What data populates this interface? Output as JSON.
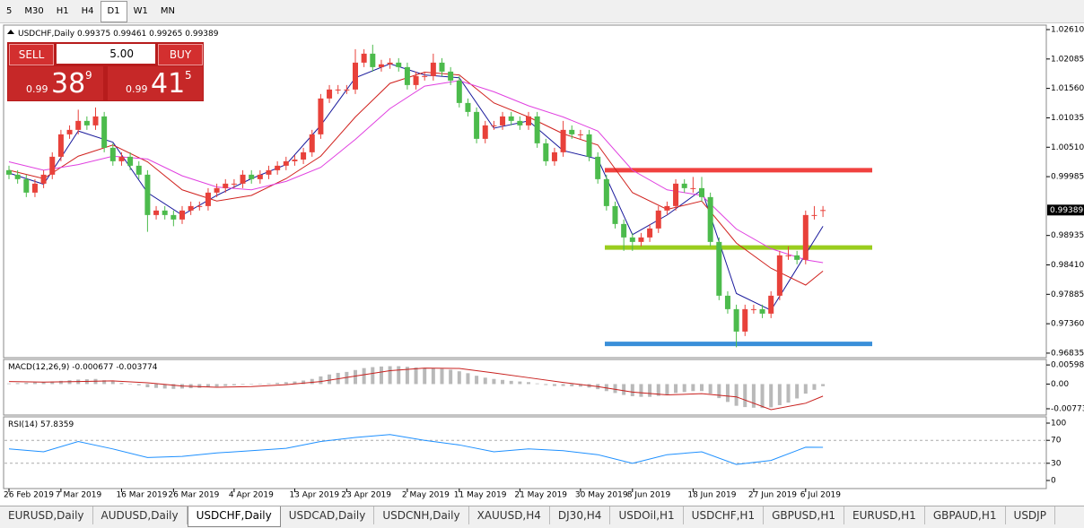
{
  "toolbar": {
    "buttons": [
      "5",
      "M30",
      "H1",
      "H4",
      "D1",
      "W1",
      "MN"
    ],
    "active": 4
  },
  "trade_panel": {
    "sell": "SELL",
    "buy": "BUY",
    "volume": "5.00",
    "bid": {
      "big": "0.99",
      "main": "38",
      "pip": "9"
    },
    "ask": {
      "big": "0.99",
      "main": "41",
      "pip": "5"
    }
  },
  "tabs": {
    "items": [
      "EURUSD,Daily",
      "AUDUSD,Daily",
      "USDCHF,Daily",
      "USDCAD,Daily",
      "USDCNH,Daily",
      "XAUUSD,H4",
      "DJ30,H4",
      "USDOil,H1",
      "USDCHF,H1",
      "GBPUSD,H1",
      "EURUSD,H1",
      "GBPAUD,H1",
      "USDJP"
    ],
    "active": 2
  },
  "chart_data": [
    {
      "type": "candlestick",
      "title": "USDCHF,Daily",
      "categories": [
        "26 Feb 2019",
        null,
        null,
        null,
        null,
        null,
        "7 Mar 2019",
        null,
        null,
        null,
        null,
        null,
        null,
        "16 Mar 2019",
        null,
        null,
        null,
        null,
        null,
        "26 Mar 2019",
        null,
        null,
        null,
        null,
        null,
        null,
        "4 Apr 2019",
        null,
        null,
        null,
        null,
        null,
        null,
        "13 Apr 2019",
        null,
        null,
        null,
        null,
        null,
        "23 Apr 2019",
        null,
        null,
        null,
        null,
        null,
        null,
        "2 May 2019",
        null,
        null,
        null,
        null,
        null,
        "11 May 2019",
        null,
        null,
        null,
        null,
        null,
        null,
        "21 May 2019",
        null,
        null,
        null,
        null,
        null,
        null,
        "30 May 2019",
        null,
        null,
        null,
        null,
        null,
        "8 Jun 2019",
        null,
        null,
        null,
        null,
        null,
        null,
        "18 Jun 2019",
        null,
        null,
        null,
        null,
        null,
        null,
        "27 Jun 2019",
        null,
        null,
        null,
        null,
        null,
        "6 Jul 2019",
        null,
        null
      ],
      "open": [
        1.001,
        1.0002,
        0.9994,
        0.997,
        0.9986,
        1.0002,
        1.0034,
        1.0074,
        1.0082,
        1.0098,
        1.009,
        1.0106,
        1.005,
        1.0026,
        1.0034,
        1.0018,
        1.0002,
        0.993,
        0.9938,
        0.993,
        0.9922,
        0.9938,
        0.9946,
        0.9946,
        0.997,
        0.9978,
        0.9986,
        0.9986,
        1.0002,
        0.9994,
        1.0002,
        1.001,
        1.0018,
        1.0026,
        1.0029,
        1.0042,
        1.0074,
        1.0138,
        1.0154,
        1.0154,
        1.0154,
        1.0202,
        1.0218,
        1.0194,
        1.0199,
        1.0202,
        1.0194,
        1.0162,
        1.0178,
        1.0178,
        1.0202,
        1.0186,
        1.017,
        1.013,
        1.0114,
        1.0066,
        1.009,
        1.009,
        1.0106,
        1.0098,
        1.009,
        1.0106,
        1.0058,
        1.0026,
        1.0042,
        1.0082,
        1.0074,
        1.0074,
        1.0034,
        0.9994,
        0.9946,
        0.9914,
        0.989,
        0.9882,
        0.989,
        0.9906,
        0.9938,
        0.9946,
        0.9986,
        0.9978,
        0.9978,
        0.9962,
        0.9882,
        0.9786,
        0.9762,
        0.9722,
        0.9762,
        0.9762,
        0.9754,
        0.9786,
        0.9858,
        0.9858,
        0.985,
        0.993,
        0.99375
      ],
      "high": [
        1.0018,
        1.001,
        1.0002,
        0.9994,
        1.001,
        1.0042,
        1.0082,
        1.009,
        1.0118,
        1.0106,
        1.0122,
        1.0114,
        1.0058,
        1.0042,
        1.0042,
        1.0026,
        1.001,
        0.9946,
        0.9946,
        0.9938,
        0.9946,
        0.9954,
        0.9954,
        0.9978,
        0.9986,
        0.9994,
        0.9994,
        1.001,
        1.001,
        1.001,
        1.0018,
        1.0026,
        1.0034,
        1.0037,
        1.005,
        1.0082,
        1.0146,
        1.0162,
        1.0162,
        1.0162,
        1.0226,
        1.0226,
        1.0234,
        1.0207,
        1.021,
        1.021,
        1.0202,
        1.0186,
        1.0186,
        1.0218,
        1.021,
        1.0194,
        1.0178,
        1.0138,
        1.0122,
        1.0098,
        1.0098,
        1.0114,
        1.0114,
        1.0106,
        1.0114,
        1.0114,
        1.0066,
        1.005,
        1.0098,
        1.009,
        1.0082,
        1.0082,
        1.0042,
        1.0002,
        0.9954,
        0.9922,
        0.9898,
        0.9898,
        0.9914,
        0.9946,
        0.9954,
        0.9994,
        0.9994,
        0.9998,
        0.9998,
        0.997,
        0.989,
        0.9794,
        0.977,
        0.977,
        0.977,
        0.977,
        0.9794,
        0.9866,
        0.9874,
        0.9866,
        0.9938,
        0.9946,
        0.99461
      ],
      "low": [
        0.9994,
        0.9986,
        0.9962,
        0.9962,
        0.9978,
        0.9994,
        1.0026,
        1.0066,
        1.0074,
        1.0082,
        1.0082,
        1.0042,
        1.0018,
        1.0018,
        1.001,
        0.9994,
        0.99,
        0.9922,
        0.9922,
        0.991,
        0.9914,
        0.993,
        0.9938,
        0.9938,
        0.9962,
        0.997,
        0.9978,
        0.9978,
        0.9986,
        0.9986,
        0.9994,
        1.0002,
        1.001,
        1.0018,
        1.0021,
        1.0034,
        1.0066,
        1.013,
        1.0146,
        1.0146,
        1.0146,
        1.0194,
        1.0186,
        1.0186,
        1.0191,
        1.0186,
        1.0154,
        1.0154,
        1.017,
        1.017,
        1.0178,
        1.0162,
        1.0122,
        1.0106,
        1.0058,
        1.0058,
        1.0082,
        1.0082,
        1.009,
        1.0082,
        1.0082,
        1.005,
        1.0018,
        1.0018,
        1.0034,
        1.0066,
        1.0066,
        1.0026,
        0.9986,
        0.9938,
        0.9906,
        0.9866,
        0.9866,
        0.9874,
        0.9882,
        0.9898,
        0.993,
        0.9938,
        0.997,
        0.997,
        0.9954,
        0.9874,
        0.9778,
        0.9754,
        0.9694,
        0.9714,
        0.9754,
        0.9746,
        0.9746,
        0.9778,
        0.985,
        0.9842,
        0.9842,
        0.9922,
        0.99265
      ],
      "close": [
        1.0002,
        0.9994,
        0.997,
        0.9986,
        1.0002,
        1.0034,
        1.0074,
        1.0082,
        1.0098,
        1.009,
        1.0106,
        1.005,
        1.0026,
        1.0034,
        1.0018,
        1.0002,
        0.993,
        0.9938,
        0.993,
        0.9922,
        0.9938,
        0.9946,
        0.9946,
        0.997,
        0.9978,
        0.9986,
        0.9986,
        1.0002,
        0.9994,
        1.0002,
        1.001,
        1.0018,
        1.0026,
        1.0029,
        1.0042,
        1.0074,
        1.0138,
        1.0154,
        1.0154,
        1.0154,
        1.0202,
        1.0218,
        1.0194,
        1.0199,
        1.0202,
        1.0194,
        1.0162,
        1.0178,
        1.0178,
        1.0202,
        1.0186,
        1.017,
        1.013,
        1.0114,
        1.0066,
        1.009,
        1.009,
        1.0106,
        1.0098,
        1.009,
        1.0106,
        1.0058,
        1.0026,
        1.0042,
        1.0082,
        1.0074,
        1.0074,
        1.0034,
        0.9994,
        0.9946,
        0.9914,
        0.989,
        0.9882,
        0.989,
        0.9906,
        0.9938,
        0.9946,
        0.9986,
        0.9978,
        0.9978,
        0.9962,
        0.9882,
        0.9786,
        0.9762,
        0.9722,
        0.9762,
        0.9762,
        0.9754,
        0.9786,
        0.9858,
        0.9858,
        0.985,
        0.993,
        0.993,
        0.99389
      ],
      "up_color": "#e8413a",
      "down_color": "#4cbb4c",
      "ylim": [
        0.9677,
        1.0269
      ],
      "yticks": [
        {
          "value": 1.0261,
          "label": "1.02610"
        },
        1.02085,
        {
          "value": 1.0156,
          "label": "1.01560"
        },
        1.01035,
        {
          "value": 1.0051,
          "label": "1.00510"
        },
        0.99985,
        0.98935,
        {
          "value": 0.9841,
          "label": "0.98410"
        },
        0.97885,
        {
          "value": 0.9736,
          "label": "0.97360"
        },
        0.96835
      ],
      "series": [
        {
          "color": "#1a1a9c",
          "x": [
            0,
            4,
            8,
            12,
            16,
            20,
            24,
            28,
            32,
            36,
            40,
            44,
            48,
            52,
            56,
            60,
            64,
            68,
            72,
            76,
            80,
            84,
            88,
            92,
            94
          ],
          "values": [
            1.0005,
            0.9985,
            1.008,
            1.006,
            0.997,
            0.993,
            0.9965,
            0.9995,
            1.002,
            1.009,
            1.0175,
            1.02,
            1.018,
            1.0175,
            1.0085,
            1.0098,
            1.0045,
            1.003,
            0.9895,
            0.993,
            0.9975,
            0.979,
            0.976,
            0.986,
            0.991
          ]
        },
        {
          "color": "#d0201c",
          "x": [
            0,
            4,
            8,
            12,
            16,
            20,
            24,
            28,
            32,
            36,
            40,
            44,
            48,
            52,
            56,
            60,
            64,
            68,
            72,
            76,
            80,
            84,
            88,
            92,
            94
          ],
          "values": [
            1.001,
            0.9995,
            1.0035,
            1.0055,
            1.0025,
            0.9975,
            0.9955,
            0.9965,
            0.9995,
            1.0035,
            1.0105,
            1.0165,
            1.0185,
            1.018,
            1.013,
            1.0105,
            1.0075,
            1.0055,
            0.997,
            0.994,
            0.9955,
            0.988,
            0.9835,
            0.9805,
            0.983
          ]
        },
        {
          "color": "#e040e0",
          "x": [
            0,
            4,
            8,
            12,
            16,
            20,
            24,
            28,
            32,
            36,
            40,
            44,
            48,
            52,
            56,
            60,
            64,
            68,
            72,
            76,
            80,
            84,
            88,
            92,
            94
          ],
          "values": [
            1.0025,
            1.001,
            1.002,
            1.0035,
            1.003,
            1.0,
            0.998,
            0.9975,
            0.999,
            1.0015,
            1.0065,
            1.012,
            1.016,
            1.017,
            1.015,
            1.0125,
            1.0105,
            1.008,
            1.001,
            0.9975,
            0.9965,
            0.9905,
            0.987,
            0.985,
            0.9845
          ]
        }
      ],
      "hlines": [
        {
          "value": 1.001,
          "color": "#f0413f"
        },
        {
          "value": 0.9872,
          "color": "#9acd1e"
        },
        {
          "value": 0.97,
          "color": "#3a8fd9"
        }
      ]
    },
    {
      "type": "bar",
      "title": "MACD(12,26,9)",
      "color": "#b9b9b9",
      "values": [
        0.0002,
        0.0003,
        0.0004,
        0.0005,
        0.0006,
        0.0008,
        0.001,
        0.0012,
        0.0014,
        0.0015,
        0.0016,
        0.0012,
        0.0008,
        0.0004,
        0.0,
        -0.0004,
        -0.001,
        -0.0012,
        -0.0014,
        -0.0015,
        -0.0014,
        -0.0013,
        -0.0012,
        -0.001,
        -0.0008,
        -0.0006,
        -0.0004,
        -0.0002,
        -0.0001,
        0.0,
        0.0002,
        0.0004,
        0.0006,
        0.0008,
        0.0011,
        0.0016,
        0.0024,
        0.003,
        0.0035,
        0.0038,
        0.0044,
        0.005,
        0.0053,
        0.0055,
        0.0056,
        0.0056,
        0.0054,
        0.0052,
        0.005,
        0.005,
        0.0048,
        0.0045,
        0.004,
        0.0034,
        0.0026,
        0.002,
        0.0016,
        0.0013,
        0.001,
        0.0008,
        0.0006,
        0.0002,
        -0.0003,
        -0.0006,
        -0.0006,
        -0.0007,
        -0.0008,
        -0.0011,
        -0.0016,
        -0.0022,
        -0.0028,
        -0.0034,
        -0.0038,
        -0.004,
        -0.004,
        -0.0037,
        -0.0034,
        -0.0028,
        -0.0025,
        -0.0022,
        -0.0022,
        -0.003,
        -0.0044,
        -0.0056,
        -0.0068,
        -0.0072,
        -0.0074,
        -0.0075,
        -0.0073,
        -0.0066,
        -0.0058,
        -0.0045,
        -0.003,
        -0.0018,
        -0.000677
      ],
      "series": [
        {
          "color": "#c8201e",
          "x": [
            0,
            4,
            8,
            12,
            16,
            20,
            24,
            28,
            32,
            36,
            40,
            44,
            48,
            52,
            56,
            60,
            64,
            68,
            72,
            76,
            80,
            84,
            88,
            92,
            94
          ],
          "values": [
            0.0008,
            0.0006,
            0.0008,
            0.001,
            0.0004,
            -0.0006,
            -0.001,
            -0.0008,
            -0.0002,
            0.0008,
            0.0025,
            0.0042,
            0.005,
            0.0049,
            0.0035,
            0.002,
            0.0005,
            -0.0008,
            -0.0025,
            -0.0034,
            -0.003,
            -0.004,
            -0.008,
            -0.006,
            -0.003774
          ]
        }
      ],
      "ylim": [
        -0.0097,
        0.0077
      ],
      "yticks": [
        0.005986,
        {
          "value": 0,
          "label": "0.00"
        },
        -0.00773
      ]
    },
    {
      "type": "line",
      "title": "RSI(14)",
      "series": [
        {
          "color": "#1e90ff",
          "x": [
            0,
            4,
            8,
            12,
            16,
            20,
            24,
            28,
            32,
            36,
            40,
            44,
            48,
            52,
            56,
            60,
            64,
            68,
            72,
            76,
            80,
            84,
            88,
            92,
            94
          ],
          "values": [
            55,
            50,
            68,
            55,
            40,
            42,
            48,
            52,
            56,
            68,
            75,
            80,
            70,
            62,
            50,
            55,
            52,
            45,
            30,
            45,
            50,
            28,
            35,
            58,
            57.8359
          ]
        }
      ],
      "ylim": [
        0,
        100
      ],
      "yticks": [
        100,
        70,
        30,
        0
      ],
      "levels": [
        70,
        30
      ]
    }
  ]
}
